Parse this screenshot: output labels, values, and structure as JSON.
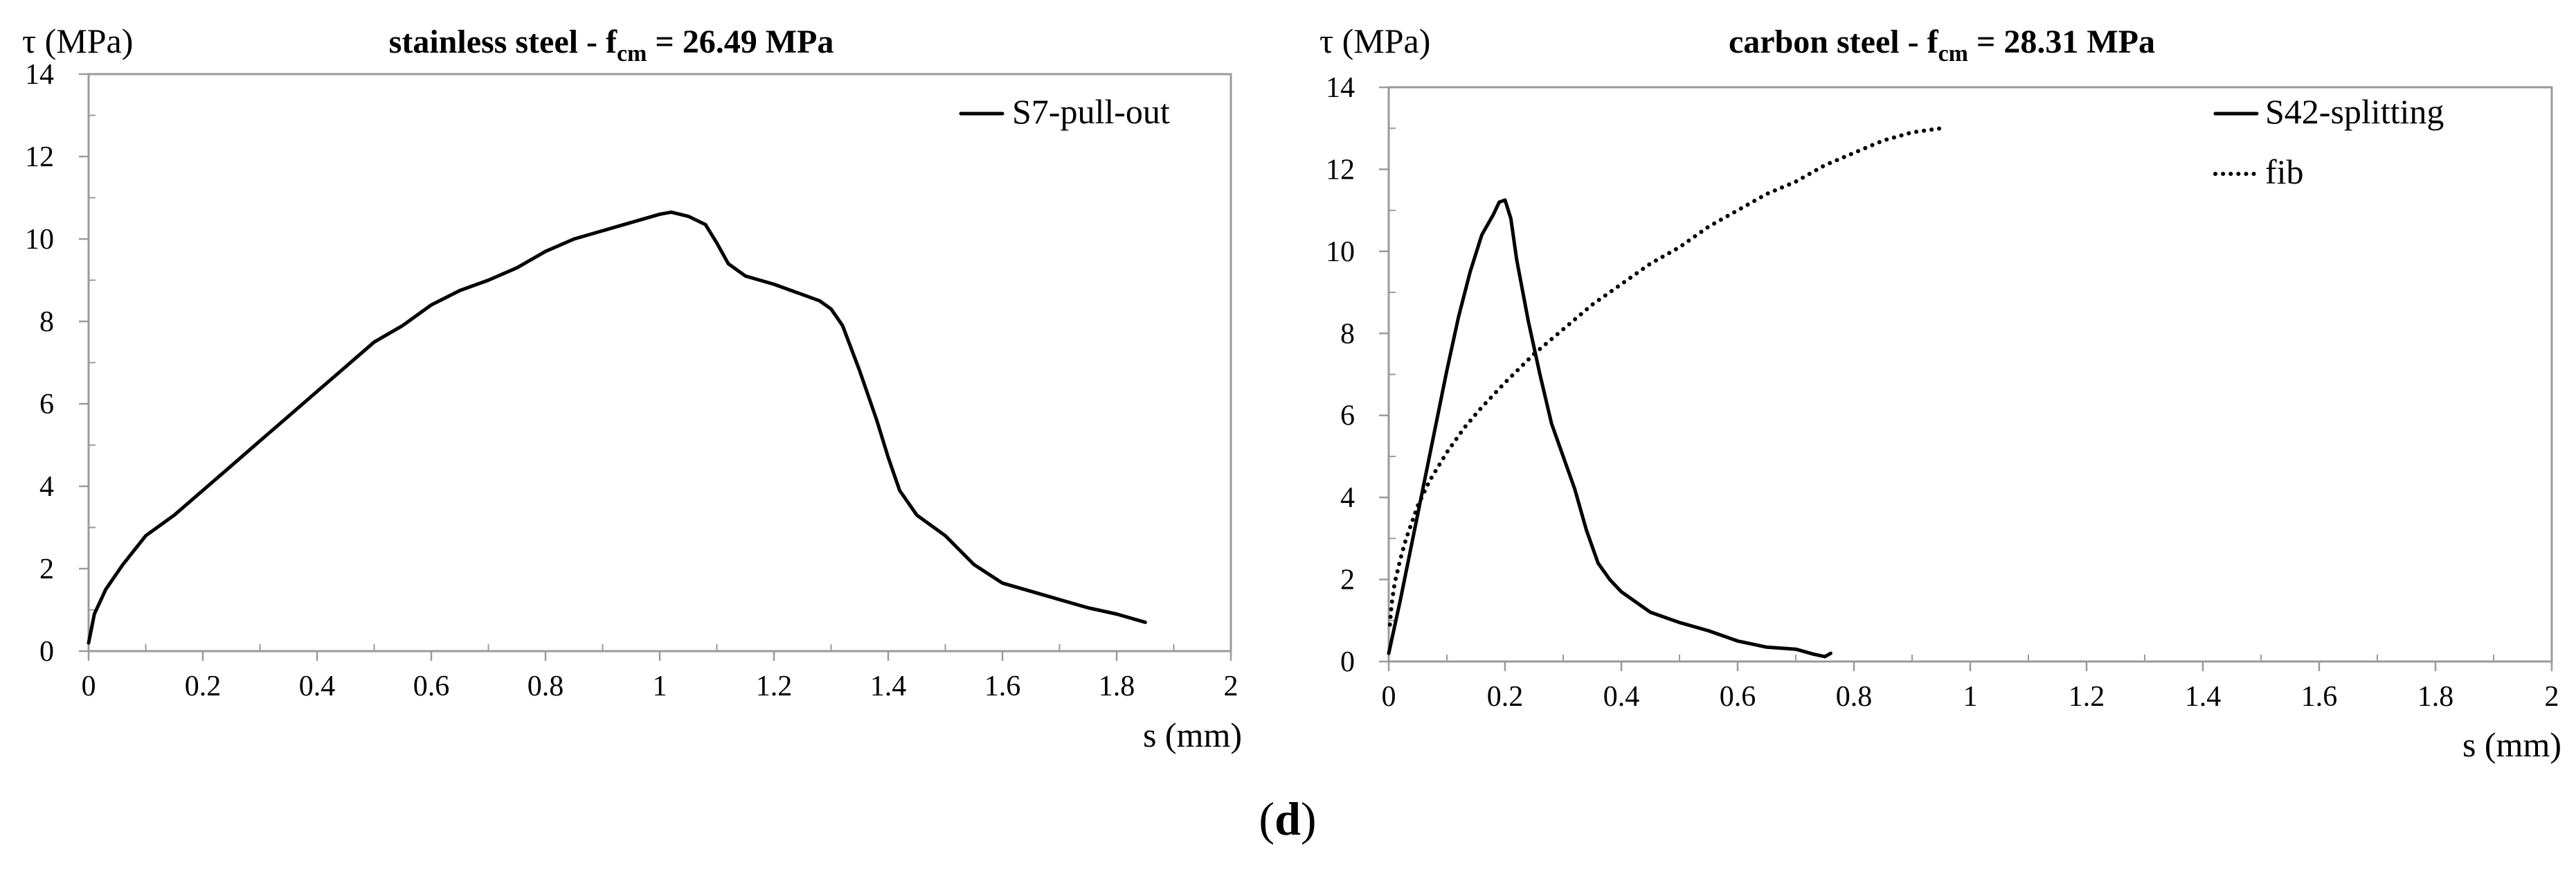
{
  "figure": {
    "panel_label_open": "(",
    "panel_label_letter": "d",
    "panel_label_close": ")"
  },
  "chart_data": [
    {
      "type": "line",
      "title_prefix": "stainless steel - f",
      "title_subscript": "cm",
      "title_suffix": " = 26.49 MPa",
      "xlabel": "s (mm)",
      "ylabel": "τ (MPa)",
      "xlim": [
        0,
        2
      ],
      "ylim": [
        0,
        14
      ],
      "xticks": [
        0,
        0.2,
        0.4,
        0.6,
        0.8,
        1,
        1.2,
        1.4,
        1.6,
        1.8,
        2
      ],
      "xtick_labels": [
        "0",
        "0.2",
        "0.4",
        "0.6",
        "0.8",
        "1",
        "1.2",
        "1.4",
        "1.6",
        "1.8",
        "2"
      ],
      "yticks": [
        0,
        2,
        4,
        6,
        8,
        10,
        12,
        14
      ],
      "ytick_labels": [
        "0",
        "2",
        "4",
        "6",
        "8",
        "10",
        "12",
        "14"
      ],
      "legend_position": "top-right",
      "series": [
        {
          "name": "S7-pull-out",
          "style": "solid",
          "color": "#000000",
          "x": [
            0,
            0.01,
            0.03,
            0.06,
            0.1,
            0.15,
            0.2,
            0.25,
            0.3,
            0.35,
            0.4,
            0.45,
            0.5,
            0.55,
            0.6,
            0.65,
            0.7,
            0.75,
            0.8,
            0.85,
            0.9,
            0.95,
            1.0,
            1.02,
            1.05,
            1.08,
            1.1,
            1.12,
            1.15,
            1.2,
            1.25,
            1.28,
            1.3,
            1.32,
            1.35,
            1.38,
            1.4,
            1.42,
            1.45,
            1.5,
            1.55,
            1.6,
            1.65,
            1.7,
            1.75,
            1.8,
            1.85
          ],
          "y": [
            0.2,
            0.9,
            1.5,
            2.1,
            2.8,
            3.3,
            3.9,
            4.5,
            5.1,
            5.7,
            6.3,
            6.9,
            7.5,
            7.9,
            8.4,
            8.75,
            9.0,
            9.3,
            9.7,
            10.0,
            10.2,
            10.4,
            10.6,
            10.65,
            10.55,
            10.35,
            9.9,
            9.4,
            9.1,
            8.9,
            8.65,
            8.5,
            8.3,
            7.9,
            6.8,
            5.6,
            4.7,
            3.9,
            3.3,
            2.8,
            2.1,
            1.65,
            1.45,
            1.25,
            1.05,
            0.9,
            0.7
          ]
        }
      ]
    },
    {
      "type": "line",
      "title_prefix": "carbon steel - f",
      "title_subscript": "cm",
      "title_suffix": " = 28.31 MPa",
      "xlabel": "s (mm)",
      "ylabel": "τ (MPa)",
      "xlim": [
        0,
        2
      ],
      "ylim": [
        0,
        14
      ],
      "xticks": [
        0,
        0.2,
        0.4,
        0.6,
        0.8,
        1,
        1.2,
        1.4,
        1.6,
        1.8,
        2
      ],
      "xtick_labels": [
        "0",
        "0.2",
        "0.4",
        "0.6",
        "0.8",
        "1",
        "1.2",
        "1.4",
        "1.6",
        "1.8",
        "2"
      ],
      "yticks": [
        0,
        2,
        4,
        6,
        8,
        10,
        12,
        14
      ],
      "ytick_labels": [
        "0",
        "2",
        "4",
        "6",
        "8",
        "10",
        "12",
        "14"
      ],
      "legend_position": "top-right",
      "series": [
        {
          "name": "S42-splitting",
          "style": "solid",
          "color": "#000000",
          "x": [
            0,
            0.02,
            0.04,
            0.06,
            0.08,
            0.1,
            0.12,
            0.14,
            0.16,
            0.18,
            0.19,
            0.2,
            0.21,
            0.22,
            0.24,
            0.26,
            0.28,
            0.3,
            0.32,
            0.34,
            0.36,
            0.38,
            0.4,
            0.45,
            0.5,
            0.55,
            0.6,
            0.65,
            0.7,
            0.73,
            0.75,
            0.76
          ],
          "y": [
            0.2,
            1.5,
            2.9,
            4.3,
            5.7,
            7.1,
            8.4,
            9.5,
            10.4,
            10.9,
            11.2,
            11.25,
            10.8,
            9.8,
            8.3,
            7.0,
            5.8,
            5.0,
            4.2,
            3.2,
            2.4,
            2.0,
            1.7,
            1.2,
            0.95,
            0.75,
            0.5,
            0.35,
            0.3,
            0.18,
            0.12,
            0.2
          ]
        },
        {
          "name": "fib",
          "style": "dotted",
          "color": "#000000",
          "x": [
            0.002,
            0.005,
            0.01,
            0.02,
            0.03,
            0.05,
            0.07,
            0.1,
            0.13,
            0.16,
            0.2,
            0.25,
            0.3,
            0.35,
            0.4,
            0.45,
            0.5,
            0.55,
            0.6,
            0.65,
            0.7,
            0.75,
            0.8,
            0.85,
            0.9,
            0.95
          ],
          "y": [
            0.9,
            1.4,
            1.9,
            2.5,
            3.0,
            3.8,
            4.4,
            5.1,
            5.7,
            6.2,
            6.8,
            7.5,
            8.1,
            8.7,
            9.2,
            9.7,
            10.1,
            10.6,
            11.0,
            11.4,
            11.7,
            12.1,
            12.4,
            12.7,
            12.9,
            13.0
          ]
        }
      ]
    }
  ]
}
